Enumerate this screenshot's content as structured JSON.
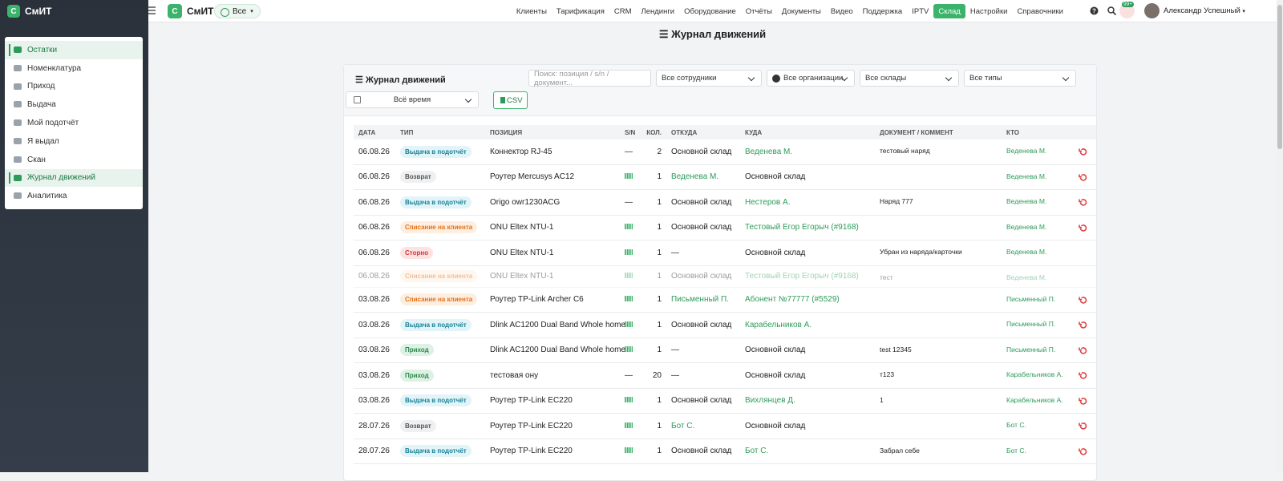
{
  "sidebar": {
    "logo_letter": "С",
    "logo": "СмИТ",
    "menu": [
      {
        "label": "Остатки",
        "highlighted": true
      },
      {
        "label": "Номенклатура"
      },
      {
        "label": "Приход"
      },
      {
        "label": "Выдача"
      },
      {
        "label": "Мой подотчёт"
      },
      {
        "label": "Я выдал"
      },
      {
        "label": "Скан"
      },
      {
        "label": "Журнал движений",
        "highlighted": true
      },
      {
        "label": "Аналитика"
      }
    ]
  },
  "topbar": {
    "logo_letter": "С",
    "logo": "СмИТ",
    "scope": "Все",
    "nav": [
      {
        "label": "Клиенты"
      },
      {
        "label": "Тарификация"
      },
      {
        "label": "CRM"
      },
      {
        "label": "Лендинги"
      },
      {
        "label": "Оборудование"
      },
      {
        "label": "Отчёты"
      },
      {
        "label": "Документы"
      },
      {
        "label": "Видео"
      },
      {
        "label": "Поддержка"
      },
      {
        "label": "IPTV"
      },
      {
        "label": "Склад",
        "active": true
      },
      {
        "label": "Настройки"
      },
      {
        "label": "Справочники"
      }
    ],
    "notifications": "99+",
    "user": "Александр Успешный"
  },
  "page": {
    "title": "Журнал движений"
  },
  "card": {
    "title": "Журнал движений",
    "search_placeholder": "Поиск: позиция / s/n / документ...",
    "filters": [
      "Все сотрудники",
      "Все организации",
      "Все склады",
      "Все типы"
    ],
    "period": "Всё время",
    "export": "CSV"
  },
  "table": {
    "columns": [
      "ДАТА",
      "ТИП",
      "ПОЗИЦИЯ",
      "S/N",
      "КОЛ.",
      "ОТКУДА",
      "КУДА",
      "ДОКУМЕНТ / КОММЕНТ",
      "КТО"
    ],
    "rows": [
      {
        "date": "06.08.26",
        "type": "Выдача в подотчёт",
        "type_color": "cyan",
        "position": "Коннектор RJ-45",
        "sn": "—",
        "qty": 2,
        "from": "Основной склад",
        "to": "Веденева М.",
        "to_link": true,
        "doc": "тестовый наряд",
        "who": "Веденева М.",
        "undo": true
      },
      {
        "date": "06.08.26",
        "type": "Возврат",
        "type_color": "gray",
        "position": "Роутер Mercusys AC12",
        "sn": null,
        "qty": 1,
        "from": "Веденева М.",
        "from_link": true,
        "to": "Основной склад",
        "doc": null,
        "who": "Веденева М.",
        "undo": true
      },
      {
        "date": "06.08.26",
        "type": "Выдача в подотчёт",
        "type_color": "cyan",
        "position": "Origo owr1230ACG",
        "sn": "—",
        "qty": 1,
        "from": "Основной склад",
        "to": "Нестеров А.",
        "to_link": true,
        "doc": "Наряд 777",
        "who": "Веденева М.",
        "undo": true
      },
      {
        "date": "06.08.26",
        "type": "Списание на клиента",
        "type_color": "orange",
        "position": "ONU Eltex NTU-1",
        "sn": null,
        "qty": 1,
        "from": "Основной склад",
        "to": "Тестовый Егор Егорыч (#9168)",
        "to_link": true,
        "doc": null,
        "who": "Веденева М.",
        "undo": true
      },
      {
        "date": "06.08.26",
        "type": "Сторно",
        "type_color": "red",
        "position": "ONU Eltex NTU-1",
        "sn": null,
        "qty": 1,
        "from": "—",
        "to": "Основной склад",
        "doc": "Убран из наряда/карточки",
        "who": "Веденева М.",
        "undo": false
      },
      {
        "date": "06.08.26",
        "type": "Списание на клиента",
        "type_color": "orange",
        "position": "ONU Eltex NTU-1",
        "sn": null,
        "qty": 1,
        "from": "Основной склад",
        "to": "Тестовый Егор Егорыч (#9168)",
        "to_link": true,
        "doc": "тест",
        "who": "Веденева М.",
        "undo": false,
        "faded": true
      },
      {
        "date": "03.08.26",
        "type": "Списание на клиента",
        "type_color": "orange",
        "position": "Роутер TP-Link Archer C6",
        "sn": null,
        "qty": 1,
        "from": "Письменный П.",
        "from_link": true,
        "to": "Абонент №77777 (#5529)",
        "to_link": true,
        "doc": null,
        "who": "Письменный П.",
        "undo": true
      },
      {
        "date": "03.08.26",
        "type": "Выдача в подотчёт",
        "type_color": "cyan",
        "position": "Dlink AC1200 Dual Band Whole home",
        "sn": null,
        "qty": 1,
        "from": "Основной склад",
        "to": "Карабельников А.",
        "to_link": true,
        "doc": null,
        "who": "Письменный П.",
        "undo": true
      },
      {
        "date": "03.08.26",
        "type": "Приход",
        "type_color": "green",
        "position": "Dlink AC1200 Dual Band Whole home",
        "sn": null,
        "qty": 1,
        "from": "—",
        "to": "Основной склад",
        "doc": "test 12345",
        "who": "Письменный П.",
        "undo": true
      },
      {
        "date": "03.08.26",
        "type": "Приход",
        "type_color": "green",
        "position": "тестовая ону",
        "sn": "—",
        "qty": 20,
        "from": "—",
        "to": "Основной склад",
        "doc": "т123",
        "who": "Карабельников А.",
        "undo": true
      },
      {
        "date": "03.08.26",
        "type": "Выдача в подотчёт",
        "type_color": "cyan",
        "position": "Роутер TP-Link EC220",
        "sn": null,
        "qty": 1,
        "from": "Основной склад",
        "to": "Вихлянцев Д.",
        "to_link": true,
        "doc": "1",
        "who": "Карабельников А.",
        "undo": true
      },
      {
        "date": "28.07.26",
        "type": "Возврат",
        "type_color": "gray",
        "position": "Роутер TP-Link EC220",
        "sn": null,
        "qty": 1,
        "from": "Бот С.",
        "from_link": true,
        "to": "Основной склад",
        "doc": null,
        "who": "Бот С.",
        "undo": true
      },
      {
        "date": "28.07.26",
        "type": "Выдача в подотчёт",
        "type_color": "cyan",
        "position": "Роутер TP-Link EC220",
        "sn": null,
        "qty": 1,
        "from": "Основной склад",
        "to": "Бот С.",
        "to_link": true,
        "doc": "Забрал себе",
        "who": "Бот С.",
        "undo": true
      }
    ]
  }
}
